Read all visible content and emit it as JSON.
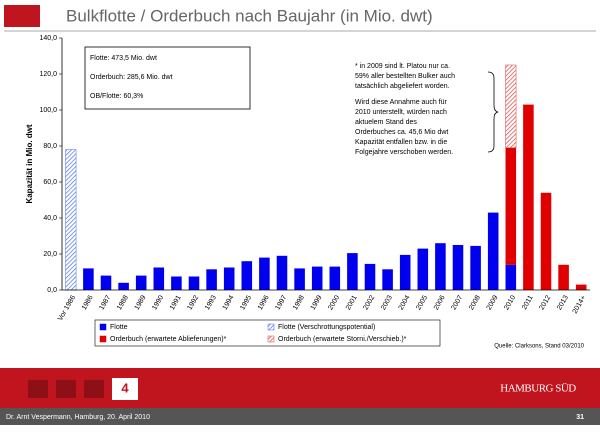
{
  "header": {
    "title": "Bulkflotte / Orderbuch nach Baujahr (in Mio. dwt)"
  },
  "chart_data": {
    "type": "bar",
    "stacked": true,
    "categories": [
      "Vor 1986",
      "1986",
      "1987",
      "1988",
      "1989",
      "1990",
      "1991",
      "1992",
      "1993",
      "1994",
      "1995",
      "1996",
      "1997",
      "1998",
      "1999",
      "2000",
      "2001",
      "2002",
      "2003",
      "2004",
      "2005",
      "2006",
      "2007",
      "2008",
      "2009",
      "2010",
      "2011",
      "2012",
      "2013",
      "2014+"
    ],
    "series": [
      {
        "name": "Flotte",
        "color": "#0000ee",
        "hatched": false,
        "values": [
          null,
          12,
          8,
          4,
          8,
          12.5,
          7.5,
          7.5,
          11.5,
          12.5,
          16,
          18,
          19,
          12,
          13,
          13,
          20.5,
          14.5,
          11.5,
          19.5,
          23,
          26,
          25,
          24.5,
          43,
          14,
          null,
          null,
          null,
          null
        ]
      },
      {
        "name": "Flotte (Verschrottungspotential)",
        "color": "#4a6ee8",
        "hatched": true,
        "values": [
          78,
          null,
          null,
          null,
          null,
          null,
          null,
          null,
          null,
          null,
          null,
          null,
          null,
          null,
          null,
          null,
          null,
          null,
          null,
          null,
          null,
          null,
          null,
          null,
          null,
          null,
          null,
          null,
          null,
          null
        ]
      },
      {
        "name": "Orderbuch (erwartete Ablieferungen)*",
        "color": "#e00000",
        "hatched": false,
        "values": [
          null,
          null,
          null,
          null,
          null,
          null,
          null,
          null,
          null,
          null,
          null,
          null,
          null,
          null,
          null,
          null,
          null,
          null,
          null,
          null,
          null,
          null,
          null,
          null,
          null,
          65,
          103,
          54,
          14,
          3
        ]
      },
      {
        "name": "Orderbuch (erwartete Storni./Verschieb.)*",
        "color": "#e04040",
        "hatched": true,
        "values": [
          null,
          null,
          null,
          null,
          null,
          null,
          null,
          null,
          null,
          null,
          null,
          null,
          null,
          null,
          null,
          null,
          null,
          null,
          null,
          null,
          null,
          null,
          null,
          null,
          null,
          46,
          null,
          null,
          null,
          null
        ]
      }
    ],
    "ylabel": "Kapazität in Mio. dwt",
    "ylim": [
      0,
      140
    ],
    "yticks": [
      {
        "value": 0,
        "label": "0,0"
      },
      {
        "value": 20,
        "label": "20,0"
      },
      {
        "value": 40,
        "label": "40,0"
      },
      {
        "value": 60,
        "label": "60,0"
      },
      {
        "value": 80,
        "label": "80,0"
      },
      {
        "value": 100,
        "label": "100,0"
      },
      {
        "value": 120,
        "label": "120,0"
      },
      {
        "value": 140,
        "label": "140,0"
      }
    ],
    "summary_box": [
      "Flotte: 473,5 Mio. dwt",
      "Orderbuch: 285,6 Mio. dwt",
      "OB/Flotte: 60,3%"
    ],
    "annotation_1": [
      "* in 2009 sind lt. Platou nur ca.",
      "59% aller bestellten Bulker auch",
      "tatsächlich abgeliefert worden."
    ],
    "annotation_2": [
      "Wird diese Annahme auch für",
      "2010 unterstellt, würden nach",
      "aktuelem Stand des",
      "Orderbuches ca. 45,6 Mio dwt",
      "Kapazität  entfallen bzw. in die",
      "Folgejahre verschoben werden."
    ],
    "source": "Quelle: Clarksons, Stand 03/2010"
  },
  "footer": {
    "page_nav": "4",
    "logo": "HAMBURG SÜD",
    "author": "Dr. Arnt Vespermann, Hamburg, 20. April 2010",
    "page": "31"
  }
}
